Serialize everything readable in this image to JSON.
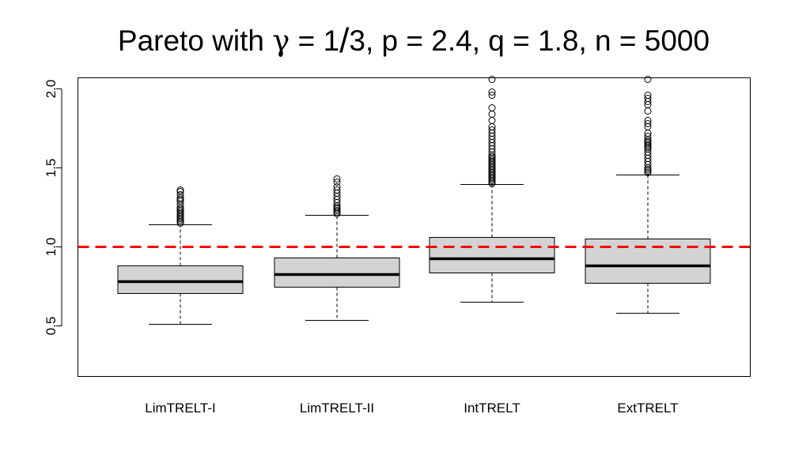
{
  "chart_data": {
    "type": "boxplot",
    "title": {
      "prefix": "Pareto with ",
      "gamma_symbol": "γ",
      "eq1": " = ",
      "numerator": "1",
      "slash": "/",
      "denominator": "3",
      "p_part": ", p = 2.4",
      "q_part": ", q = 1.8",
      "n_part": ", n = 5000"
    },
    "xlabel": "",
    "ylabel": "",
    "ylim": [
      0.18,
      2.07
    ],
    "y_ticks": [
      0.5,
      1.0,
      1.5,
      2.0
    ],
    "y_tick_labels": [
      "0.5",
      "1.0",
      "1.5",
      "2.0"
    ],
    "reference_line": {
      "y": 1.0,
      "color": "#ff0000",
      "style": "dashed"
    },
    "box_fill": "#d3d3d3",
    "categories": [
      "LimTRELT-I",
      "LimTRELT-II",
      "IntTRELT",
      "ExtTRELT"
    ],
    "boxes": [
      {
        "name": "LimTRELT-I",
        "whisker_low": 0.51,
        "q1": 0.705,
        "median": 0.78,
        "q3": 0.88,
        "whisker_high": 1.14,
        "outliers": [
          1.15,
          1.16,
          1.17,
          1.18,
          1.19,
          1.2,
          1.21,
          1.22,
          1.23,
          1.24,
          1.25,
          1.27,
          1.29,
          1.3,
          1.31,
          1.33,
          1.35,
          1.36
        ]
      },
      {
        "name": "LimTRELT-II",
        "whisker_low": 0.535,
        "q1": 0.745,
        "median": 0.825,
        "q3": 0.93,
        "whisker_high": 1.2,
        "outliers": [
          1.21,
          1.22,
          1.23,
          1.24,
          1.25,
          1.26,
          1.28,
          1.3,
          1.32,
          1.34,
          1.36,
          1.38,
          1.41,
          1.43
        ]
      },
      {
        "name": "IntTRELT",
        "whisker_low": 0.65,
        "q1": 0.835,
        "median": 0.925,
        "q3": 1.06,
        "whisker_high": 1.395,
        "outliers": [
          1.4,
          1.41,
          1.42,
          1.43,
          1.44,
          1.45,
          1.46,
          1.47,
          1.48,
          1.49,
          1.5,
          1.51,
          1.52,
          1.53,
          1.54,
          1.55,
          1.56,
          1.57,
          1.58,
          1.6,
          1.62,
          1.64,
          1.66,
          1.68,
          1.7,
          1.72,
          1.74,
          1.76,
          1.8,
          1.84,
          1.88,
          1.96,
          1.98,
          2.06
        ]
      },
      {
        "name": "ExtTRELT",
        "whisker_low": 0.58,
        "q1": 0.77,
        "median": 0.88,
        "q3": 1.05,
        "whisker_high": 1.455,
        "outliers": [
          1.47,
          1.48,
          1.49,
          1.5,
          1.52,
          1.54,
          1.56,
          1.58,
          1.6,
          1.62,
          1.63,
          1.64,
          1.65,
          1.66,
          1.67,
          1.68,
          1.7,
          1.72,
          1.76,
          1.78,
          1.8,
          1.86,
          1.9,
          1.92,
          1.94,
          1.96,
          2.06
        ]
      }
    ]
  }
}
